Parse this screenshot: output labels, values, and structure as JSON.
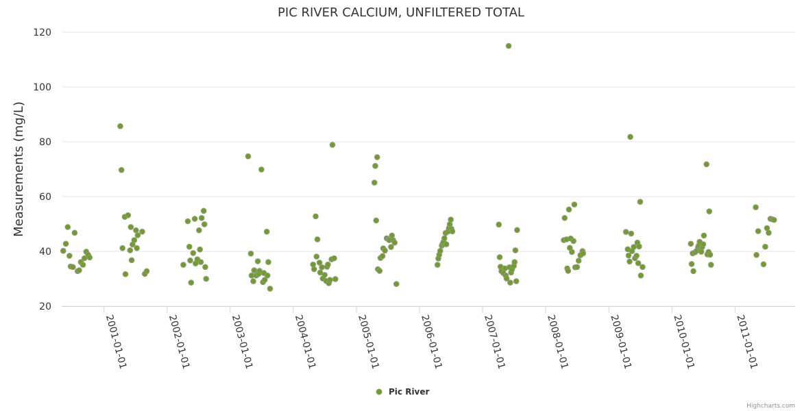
{
  "chart_data": {
    "type": "scatter",
    "title": "PIC RIVER CALCIUM, UNFILTERED TOTAL",
    "xlabel": "",
    "ylabel": "Measurements (mg/L)",
    "ylim": [
      20,
      120
    ],
    "yticks": [
      "20",
      "40",
      "60",
      "80",
      "100",
      "120"
    ],
    "xlim": [
      "2000-05-01",
      "2011-12-15"
    ],
    "xticks": [
      "2001-01-01",
      "2002-01-01",
      "2003-01-01",
      "2004-01-01",
      "2005-01-01",
      "2006-01-01",
      "2007-01-01",
      "2008-01-01",
      "2009-01-01",
      "2010-01-01",
      "2011-01-01"
    ],
    "grid": true,
    "legend_position": "bottom-center",
    "colors": {
      "marker_fill": "#66aa00",
      "marker_stroke": "#909090"
    },
    "series": [
      {
        "name": "Pic River",
        "points": [
          [
            "2000-05-10",
            40.2
          ],
          [
            "2000-05-25",
            42.8
          ],
          [
            "2000-06-05",
            48.9
          ],
          [
            "2000-06-15",
            38.4
          ],
          [
            "2000-06-22",
            34.5
          ],
          [
            "2000-07-05",
            34.3
          ],
          [
            "2000-07-15",
            46.8
          ],
          [
            "2000-08-01",
            32.8
          ],
          [
            "2000-08-10",
            33.1
          ],
          [
            "2000-08-20",
            36.1
          ],
          [
            "2000-09-01",
            35.1
          ],
          [
            "2000-09-10",
            37.5
          ],
          [
            "2000-09-20",
            39.9
          ],
          [
            "2000-10-01",
            38.8
          ],
          [
            "2000-10-10",
            37.8
          ],
          [
            "2001-04-05",
            85.7
          ],
          [
            "2001-04-12",
            69.7
          ],
          [
            "2001-04-18",
            41.2
          ],
          [
            "2001-05-01",
            52.6
          ],
          [
            "2001-05-05",
            31.7
          ],
          [
            "2001-05-20",
            53.2
          ],
          [
            "2001-06-01",
            40.4
          ],
          [
            "2001-06-05",
            48.9
          ],
          [
            "2001-06-10",
            36.8
          ],
          [
            "2001-06-15",
            42.5
          ],
          [
            "2001-06-25",
            44.1
          ],
          [
            "2001-07-05",
            47.7
          ],
          [
            "2001-07-10",
            41.2
          ],
          [
            "2001-07-15",
            45.9
          ],
          [
            "2001-08-10",
            47.2
          ],
          [
            "2001-08-25",
            31.8
          ],
          [
            "2001-09-05",
            32.8
          ],
          [
            "2002-04-05",
            35.1
          ],
          [
            "2002-05-01",
            51.0
          ],
          [
            "2002-05-10",
            41.7
          ],
          [
            "2002-05-15",
            36.7
          ],
          [
            "2002-05-20",
            28.6
          ],
          [
            "2002-06-01",
            39.4
          ],
          [
            "2002-06-10",
            51.9
          ],
          [
            "2002-06-15",
            35.6
          ],
          [
            "2002-06-25",
            37.1
          ],
          [
            "2002-07-05",
            47.7
          ],
          [
            "2002-07-10",
            40.7
          ],
          [
            "2002-07-15",
            36.1
          ],
          [
            "2002-07-20",
            52.2
          ],
          [
            "2002-08-01",
            54.8
          ],
          [
            "2002-08-05",
            49.9
          ],
          [
            "2002-08-10",
            34.3
          ],
          [
            "2002-08-15",
            30.0
          ],
          [
            "2003-04-15",
            74.7
          ],
          [
            "2003-05-01",
            39.2
          ],
          [
            "2003-05-05",
            31.2
          ],
          [
            "2003-05-15",
            29.1
          ],
          [
            "2003-05-20",
            33.1
          ],
          [
            "2003-06-01",
            31.2
          ],
          [
            "2003-06-10",
            36.4
          ],
          [
            "2003-06-15",
            31.8
          ],
          [
            "2003-06-20",
            32.9
          ],
          [
            "2003-07-01",
            69.9
          ],
          [
            "2003-07-10",
            28.8
          ],
          [
            "2003-07-15",
            32.1
          ],
          [
            "2003-07-20",
            29.6
          ],
          [
            "2003-08-01",
            47.2
          ],
          [
            "2003-08-05",
            31.2
          ],
          [
            "2003-08-10",
            36.1
          ],
          [
            "2003-08-20",
            26.4
          ],
          [
            "2004-04-25",
            35.2
          ],
          [
            "2004-05-01",
            33.5
          ],
          [
            "2004-05-10",
            52.8
          ],
          [
            "2004-05-15",
            38.1
          ],
          [
            "2004-05-20",
            44.4
          ],
          [
            "2004-06-01",
            35.9
          ],
          [
            "2004-06-05",
            32.3
          ],
          [
            "2004-06-15",
            34.2
          ],
          [
            "2004-06-20",
            30.1
          ],
          [
            "2004-07-01",
            31.4
          ],
          [
            "2004-07-10",
            29.2
          ],
          [
            "2004-07-15",
            34.4
          ],
          [
            "2004-07-20",
            35.2
          ],
          [
            "2004-07-25",
            28.4
          ],
          [
            "2004-08-01",
            29.6
          ],
          [
            "2004-08-10",
            37.1
          ],
          [
            "2004-08-15",
            78.9
          ],
          [
            "2004-08-25",
            37.5
          ],
          [
            "2004-09-01",
            29.9
          ],
          [
            "2005-04-15",
            65.1
          ],
          [
            "2005-04-20",
            71.2
          ],
          [
            "2005-04-25",
            51.3
          ],
          [
            "2005-05-01",
            74.4
          ],
          [
            "2005-05-05",
            33.5
          ],
          [
            "2005-05-15",
            32.9
          ],
          [
            "2005-05-20",
            37.6
          ],
          [
            "2005-06-01",
            38.3
          ],
          [
            "2005-06-05",
            41.1
          ],
          [
            "2005-06-15",
            40.3
          ],
          [
            "2005-06-25",
            44.8
          ],
          [
            "2005-07-05",
            44.4
          ],
          [
            "2005-07-10",
            44.1
          ],
          [
            "2005-07-20",
            41.6
          ],
          [
            "2005-07-25",
            45.8
          ],
          [
            "2005-08-01",
            44.1
          ],
          [
            "2005-08-10",
            43.2
          ],
          [
            "2005-08-20",
            28.1
          ],
          [
            "2006-04-15",
            35.1
          ],
          [
            "2006-04-20",
            37.4
          ],
          [
            "2006-04-25",
            38.8
          ],
          [
            "2006-05-01",
            40.2
          ],
          [
            "2006-05-10",
            42.1
          ],
          [
            "2006-05-15",
            42.8
          ],
          [
            "2006-05-20",
            43.5
          ],
          [
            "2006-05-25",
            44.8
          ],
          [
            "2006-06-01",
            46.7
          ],
          [
            "2006-06-05",
            42.6
          ],
          [
            "2006-06-15",
            47.3
          ],
          [
            "2006-06-20",
            48.5
          ],
          [
            "2006-06-25",
            49.9
          ],
          [
            "2006-07-01",
            51.6
          ],
          [
            "2006-07-05",
            48.2
          ],
          [
            "2006-07-10",
            47.3
          ],
          [
            "2007-04-05",
            49.8
          ],
          [
            "2007-04-10",
            37.9
          ],
          [
            "2007-04-15",
            34.4
          ],
          [
            "2007-04-20",
            32.8
          ],
          [
            "2007-05-01",
            32.1
          ],
          [
            "2007-05-10",
            33.8
          ],
          [
            "2007-05-15",
            31.2
          ],
          [
            "2007-05-20",
            30.1
          ],
          [
            "2007-06-01",
            115.0
          ],
          [
            "2007-06-05",
            34.2
          ],
          [
            "2007-06-10",
            28.6
          ],
          [
            "2007-06-15",
            32.3
          ],
          [
            "2007-06-20",
            33.4
          ],
          [
            "2007-07-01",
            34.7
          ],
          [
            "2007-07-05",
            36.1
          ],
          [
            "2007-07-10",
            40.4
          ],
          [
            "2007-07-15",
            29.1
          ],
          [
            "2007-07-20",
            47.8
          ],
          [
            "2008-04-15",
            44.1
          ],
          [
            "2008-04-20",
            52.2
          ],
          [
            "2008-05-01",
            44.4
          ],
          [
            "2008-05-05",
            33.8
          ],
          [
            "2008-05-10",
            32.9
          ],
          [
            "2008-05-15",
            55.3
          ],
          [
            "2008-05-20",
            41.3
          ],
          [
            "2008-05-25",
            44.7
          ],
          [
            "2008-06-01",
            39.8
          ],
          [
            "2008-06-10",
            43.8
          ],
          [
            "2008-06-15",
            57.1
          ],
          [
            "2008-06-20",
            34.2
          ],
          [
            "2008-07-01",
            34.3
          ],
          [
            "2008-07-10",
            36.6
          ],
          [
            "2008-07-20",
            38.6
          ],
          [
            "2008-08-01",
            40.1
          ],
          [
            "2008-08-05",
            39.3
          ],
          [
            "2009-04-10",
            47.1
          ],
          [
            "2009-04-20",
            40.8
          ],
          [
            "2009-04-25",
            38.5
          ],
          [
            "2009-05-01",
            36.3
          ],
          [
            "2009-05-05",
            81.8
          ],
          [
            "2009-05-10",
            46.5
          ],
          [
            "2009-05-15",
            40.1
          ],
          [
            "2009-05-25",
            41.6
          ],
          [
            "2009-06-01",
            37.5
          ],
          [
            "2009-06-10",
            38.4
          ],
          [
            "2009-06-15",
            43.2
          ],
          [
            "2009-06-20",
            35.7
          ],
          [
            "2009-06-25",
            41.8
          ],
          [
            "2009-07-01",
            58.1
          ],
          [
            "2009-07-05",
            31.2
          ],
          [
            "2009-07-15",
            34.3
          ],
          [
            "2010-04-20",
            42.8
          ],
          [
            "2010-04-25",
            35.4
          ],
          [
            "2010-05-01",
            39.3
          ],
          [
            "2010-05-05",
            32.8
          ],
          [
            "2010-05-15",
            39.7
          ],
          [
            "2010-05-25",
            40.3
          ],
          [
            "2010-06-01",
            41.5
          ],
          [
            "2010-06-05",
            42.1
          ],
          [
            "2010-06-10",
            43.5
          ],
          [
            "2010-06-15",
            40.6
          ],
          [
            "2010-06-20",
            39.9
          ],
          [
            "2010-06-25",
            41.6
          ],
          [
            "2010-07-01",
            42.6
          ],
          [
            "2010-07-05",
            45.8
          ],
          [
            "2010-07-20",
            71.8
          ],
          [
            "2010-07-25",
            38.9
          ],
          [
            "2010-08-01",
            39.8
          ],
          [
            "2010-08-05",
            54.6
          ],
          [
            "2010-08-10",
            38.8
          ],
          [
            "2010-08-15",
            35.1
          ],
          [
            "2011-05-01",
            56.1
          ],
          [
            "2011-05-05",
            38.7
          ],
          [
            "2011-05-15",
            47.4
          ],
          [
            "2011-06-15",
            35.3
          ],
          [
            "2011-06-25",
            41.7
          ],
          [
            "2011-07-05",
            48.5
          ],
          [
            "2011-07-15",
            46.8
          ],
          [
            "2011-07-25",
            51.9
          ],
          [
            "2011-08-05",
            51.7
          ],
          [
            "2011-08-15",
            51.5
          ]
        ]
      }
    ]
  },
  "credits": "Highcharts.com"
}
